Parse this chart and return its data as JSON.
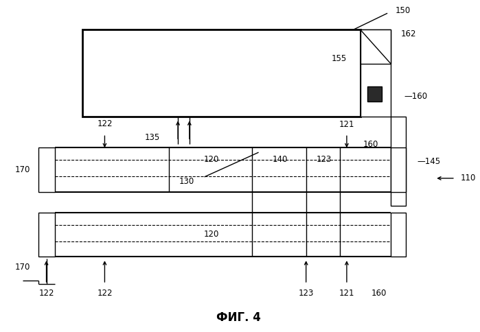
{
  "fig_label": "ФИГ. 4",
  "bg_color": "#ffffff",
  "line_color": "#000000"
}
